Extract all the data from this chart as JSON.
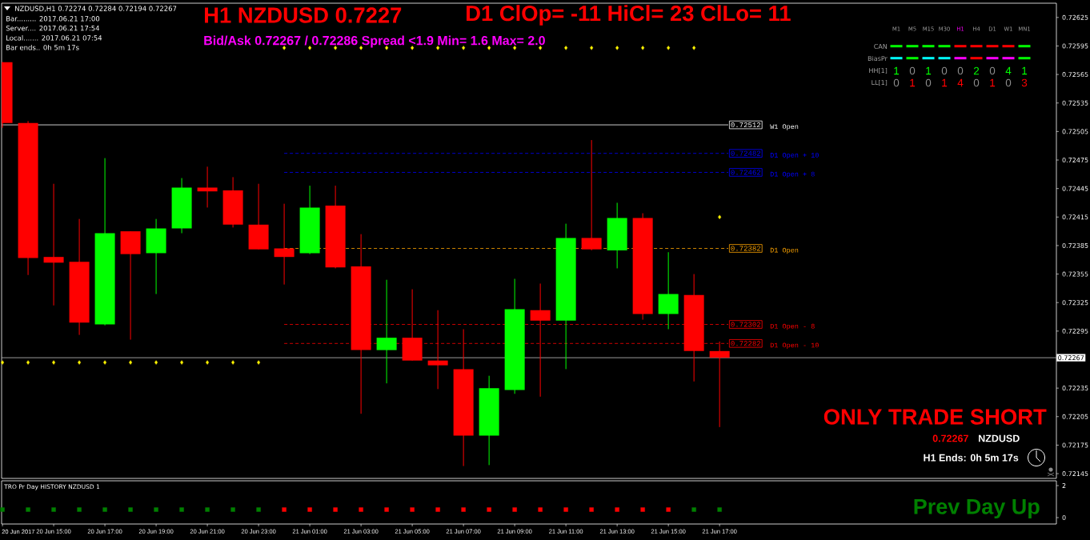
{
  "chart_data": [
    {
      "type": "candlestick",
      "title": "H1 NZDUSD 0.7227",
      "subtitle": "Bid/Ask 0.72267 / 0.72286 Spread <1.9 Min= 1.6 Max= 2.0",
      "x": [
        "2017-06-20T13:00",
        "2017-06-20T14:00",
        "2017-06-20T15:00",
        "2017-06-20T16:00",
        "2017-06-20T17:00",
        "2017-06-20T18:00",
        "2017-06-20T19:00",
        "2017-06-20T20:00",
        "2017-06-20T21:00",
        "2017-06-20T22:00",
        "2017-06-20T23:00",
        "2017-06-21T00:00",
        "2017-06-21T01:00",
        "2017-06-21T02:00",
        "2017-06-21T03:00",
        "2017-06-21T04:00",
        "2017-06-21T05:00",
        "2017-06-21T06:00",
        "2017-06-21T07:00",
        "2017-06-21T08:00",
        "2017-06-21T09:00",
        "2017-06-21T10:00",
        "2017-06-21T11:00",
        "2017-06-21T12:00",
        "2017-06-21T13:00",
        "2017-06-21T14:00",
        "2017-06-21T15:00",
        "2017-06-21T16:00",
        "2017-06-21T17:00"
      ],
      "xlim": [
        "2017-06-20T12:58",
        "2017-06-22T06:09"
      ],
      "ohlc": [
        [
          0.72578,
          0.72578,
          0.72509,
          0.72514
        ],
        [
          0.72514,
          0.72516,
          0.72354,
          0.72372
        ],
        [
          0.72373,
          0.7245,
          0.72322,
          0.72367
        ],
        [
          0.72368,
          0.72413,
          0.72291,
          0.72304
        ],
        [
          0.72302,
          0.72477,
          0.72301,
          0.72398
        ],
        [
          0.724,
          0.724,
          0.72286,
          0.72376
        ],
        [
          0.72377,
          0.72413,
          0.72334,
          0.72403
        ],
        [
          0.72403,
          0.72456,
          0.72398,
          0.72446
        ],
        [
          0.72446,
          0.72468,
          0.72425,
          0.72442
        ],
        [
          0.72443,
          0.72457,
          0.72404,
          0.72407
        ],
        [
          0.72407,
          0.7245,
          0.72381,
          0.72381
        ],
        [
          0.72382,
          0.72429,
          0.72344,
          0.72373
        ],
        [
          0.72377,
          0.72448,
          0.72376,
          0.72425
        ],
        [
          0.72427,
          0.72448,
          0.72361,
          0.72362
        ],
        [
          0.72363,
          0.72397,
          0.72208,
          0.72275
        ],
        [
          0.72275,
          0.72349,
          0.7224,
          0.72288
        ],
        [
          0.72288,
          0.72339,
          0.72264,
          0.72264
        ],
        [
          0.72264,
          0.72317,
          0.72234,
          0.72259
        ],
        [
          0.72255,
          0.72297,
          0.72153,
          0.72185
        ],
        [
          0.72185,
          0.72248,
          0.72154,
          0.72235
        ],
        [
          0.72233,
          0.7235,
          0.72229,
          0.72318
        ],
        [
          0.72317,
          0.72345,
          0.72226,
          0.72306
        ],
        [
          0.72306,
          0.72408,
          0.72255,
          0.72393
        ],
        [
          0.72393,
          0.72496,
          0.7238,
          0.72381
        ],
        [
          0.7238,
          0.7243,
          0.72361,
          0.72414
        ],
        [
          0.72414,
          0.72419,
          0.72307,
          0.72313
        ],
        [
          0.72313,
          0.72378,
          0.72297,
          0.72334
        ],
        [
          0.72333,
          0.72355,
          0.72242,
          0.72274
        ],
        [
          0.72274,
          0.72284,
          0.72194,
          0.72267
        ]
      ],
      "colors": [
        "#ff0000",
        "#ff0000",
        "#ff0000",
        "#ff0000",
        "#00ff00",
        "#ff0000",
        "#00ff00",
        "#00ff00",
        "#ff0000",
        "#ff0000",
        "#ff0000",
        "#ff0000",
        "#00ff00",
        "#ff0000",
        "#ff0000",
        "#00ff00",
        "#ff0000",
        "#ff0000",
        "#ff0000",
        "#00ff00",
        "#00ff00",
        "#ff0000",
        "#00ff00",
        "#ff0000",
        "#00ff00",
        "#ff0000",
        "#00ff00",
        "#ff0000",
        "#ff0000"
      ],
      "series": [
        {
          "type": "scatter",
          "color": "#ffff00",
          "marker": "diamond",
          "values": [
            0.72262,
            0.72262,
            0.72262,
            0.72262,
            0.72262,
            0.72262,
            0.72262,
            0.72262,
            0.72262,
            0.72262,
            0.72262,
            0.72593,
            0.72593,
            0.72593,
            0.72593,
            0.72593,
            0.72593,
            0.72593,
            0.72593,
            0.72593,
            0.72593,
            0.72593,
            0.72593,
            0.72593,
            0.72593,
            0.72593,
            0.72593,
            0.72593,
            0.72415
          ]
        }
      ],
      "ylim": [
        0.7214,
        0.7264
      ],
      "yticks": [
        0.72625,
        0.72595,
        0.72565,
        0.72535,
        0.72505,
        0.72475,
        0.72445,
        0.72415,
        0.72385,
        0.72355,
        0.72325,
        0.72295,
        0.72235,
        0.72205,
        0.72175,
        0.72145
      ],
      "tick_labels": "y",
      "ref_lines": [
        {
          "axis": "y",
          "value": 0.72512,
          "label": "W1 Open",
          "color": "#ffffff",
          "line_style": "solid"
        },
        {
          "axis": "y",
          "value": 0.72482,
          "label": "D1 Open + 10",
          "color": "#0000ff",
          "line_style": "dashed"
        },
        {
          "axis": "y",
          "value": 0.72462,
          "label": "D1 Open + 8",
          "color": "#0000ff",
          "line_style": "dashed"
        },
        {
          "axis": "y",
          "value": 0.72382,
          "label": "D1 Open",
          "color": "#ffa500",
          "line_style": "dashed"
        },
        {
          "axis": "y",
          "value": 0.72302,
          "label": "D1 Open - 8",
          "color": "#ff0000",
          "line_style": "dashed"
        },
        {
          "axis": "y",
          "value": 0.72282,
          "label": "D1 Open - 10",
          "color": "#ff0000",
          "line_style": "dashed"
        },
        {
          "axis": "y",
          "value": 0.72267,
          "label": "0.72267",
          "color": "#c0c0c0",
          "line_style": "solid"
        }
      ],
      "annotations": [
        "NZDUSD,H1 0.72274 0.72284 0.72194 0.72267",
        "Bar......... 2017.06.21 17:00",
        "Server.... 2017.06.21 17:54",
        "Local....... 2017.06.21 07:54",
        "Bar ends.. 0h 5m 17s",
        "D1 ClOp= -11 HiCl= 23 ClLo= 11",
        "M1",
        "M5",
        "M15",
        "M30",
        "H1",
        "H4",
        "D1",
        "W1",
        "MN1",
        "CAN",
        "BiasPr",
        "HH[1]",
        "LL[1]",
        "1",
        "0",
        "1",
        "0",
        "0",
        "2",
        "0",
        "4",
        "1",
        "0",
        "1",
        "0",
        "1",
        "4",
        "0",
        "1",
        "0",
        "3",
        "ONLY TRADE SHORT",
        "0.72267",
        "NZDUSD",
        "H1 Ends: 0h 5m 17s",
        "0.72512",
        "0.72482",
        "0.72462",
        "0.72382",
        "0.72302",
        "0.72282"
      ]
    },
    {
      "type": "scatter",
      "title": "TRO Pr Day HISTORY NZDUSD 1",
      "x": [
        "2017-06-20T13:00",
        "2017-06-20T14:00",
        "2017-06-20T15:00",
        "2017-06-20T16:00",
        "2017-06-20T17:00",
        "2017-06-20T18:00",
        "2017-06-20T19:00",
        "2017-06-20T20:00",
        "2017-06-20T21:00",
        "2017-06-20T22:00",
        "2017-06-20T23:00",
        "2017-06-21T00:00",
        "2017-06-21T01:00",
        "2017-06-21T02:00",
        "2017-06-21T03:00",
        "2017-06-21T04:00",
        "2017-06-21T05:00",
        "2017-06-21T06:00",
        "2017-06-21T07:00",
        "2017-06-21T08:00",
        "2017-06-21T09:00",
        "2017-06-21T10:00",
        "2017-06-21T11:00",
        "2017-06-21T12:00",
        "2017-06-21T13:00",
        "2017-06-21T14:00",
        "2017-06-21T15:00",
        "2017-06-21T16:00",
        "2017-06-21T17:00"
      ],
      "xlim": [
        "2017-06-20T12:58",
        "2017-06-22T06:09"
      ],
      "xticks": [
        {
          "value": "2017-06-20T13:00",
          "label": null
        },
        {
          "value": "2017-06-20T15:00",
          "label": "20 Jun 15:00"
        },
        {
          "value": "2017-06-20T17:00",
          "label": "20 Jun 17:00"
        },
        {
          "value": "2017-06-20T19:00",
          "label": "20 Jun 19:00"
        },
        {
          "value": "2017-06-20T21:00",
          "label": "20 Jun 21:00"
        },
        {
          "value": "2017-06-20T23:00",
          "label": "20 Jun 23:00"
        },
        {
          "value": "2017-06-21T01:00",
          "label": "21 Jun 01:00"
        },
        {
          "value": "2017-06-21T03:00",
          "label": "21 Jun 03:00"
        },
        {
          "value": "2017-06-21T05:00",
          "label": "21 Jun 05:00"
        },
        {
          "value": "2017-06-21T07:00",
          "label": "21 Jun 07:00"
        },
        {
          "value": "2017-06-21T09:00",
          "label": "21 Jun 09:00"
        },
        {
          "value": "2017-06-21T11:00",
          "label": "21 Jun 11:00"
        },
        {
          "value": "2017-06-21T13:00",
          "label": "21 Jun 13:00"
        },
        {
          "value": "2017-06-21T15:00",
          "label": "21 Jun 15:00"
        },
        {
          "value": "2017-06-21T17:00",
          "label": "21 Jun 17:00"
        }
      ],
      "values": [
        0.5,
        0.5,
        0.5,
        0.5,
        0.5,
        0.5,
        0.5,
        0.5,
        0.5,
        0.5,
        0.5,
        0.5,
        0.5,
        0.5,
        0.5,
        0.5,
        0.5,
        0.5,
        0.5,
        0.5,
        0.5,
        0.5,
        0.5,
        0.5,
        0.5,
        0.5,
        0.5,
        0.5,
        0.5
      ],
      "colors": [
        "#008000",
        "#008000",
        "#008000",
        "#008000",
        "#008000",
        "#008000",
        "#008000",
        "#008000",
        "#008000",
        "#008000",
        "#008000",
        "#ff0000",
        "#ff0000",
        "#ff0000",
        "#ff0000",
        "#ff0000",
        "#ff0000",
        "#ff0000",
        "#ff0000",
        "#ff0000",
        "#ff0000",
        "#ff0000",
        "#ff0000",
        "#ff0000",
        "#ff0000",
        "#ff0000",
        "#ff0000",
        "#008000",
        "#008000"
      ],
      "marker": "square",
      "ylim": [
        -0.4,
        2.3
      ],
      "yticks": [
        {
          "value": 0,
          "label": "0"
        },
        {
          "value": 2,
          "label": "2"
        }
      ],
      "annotations": [
        "Prev Day Up",
        "20 Jun 2017"
      ]
    }
  ]
}
